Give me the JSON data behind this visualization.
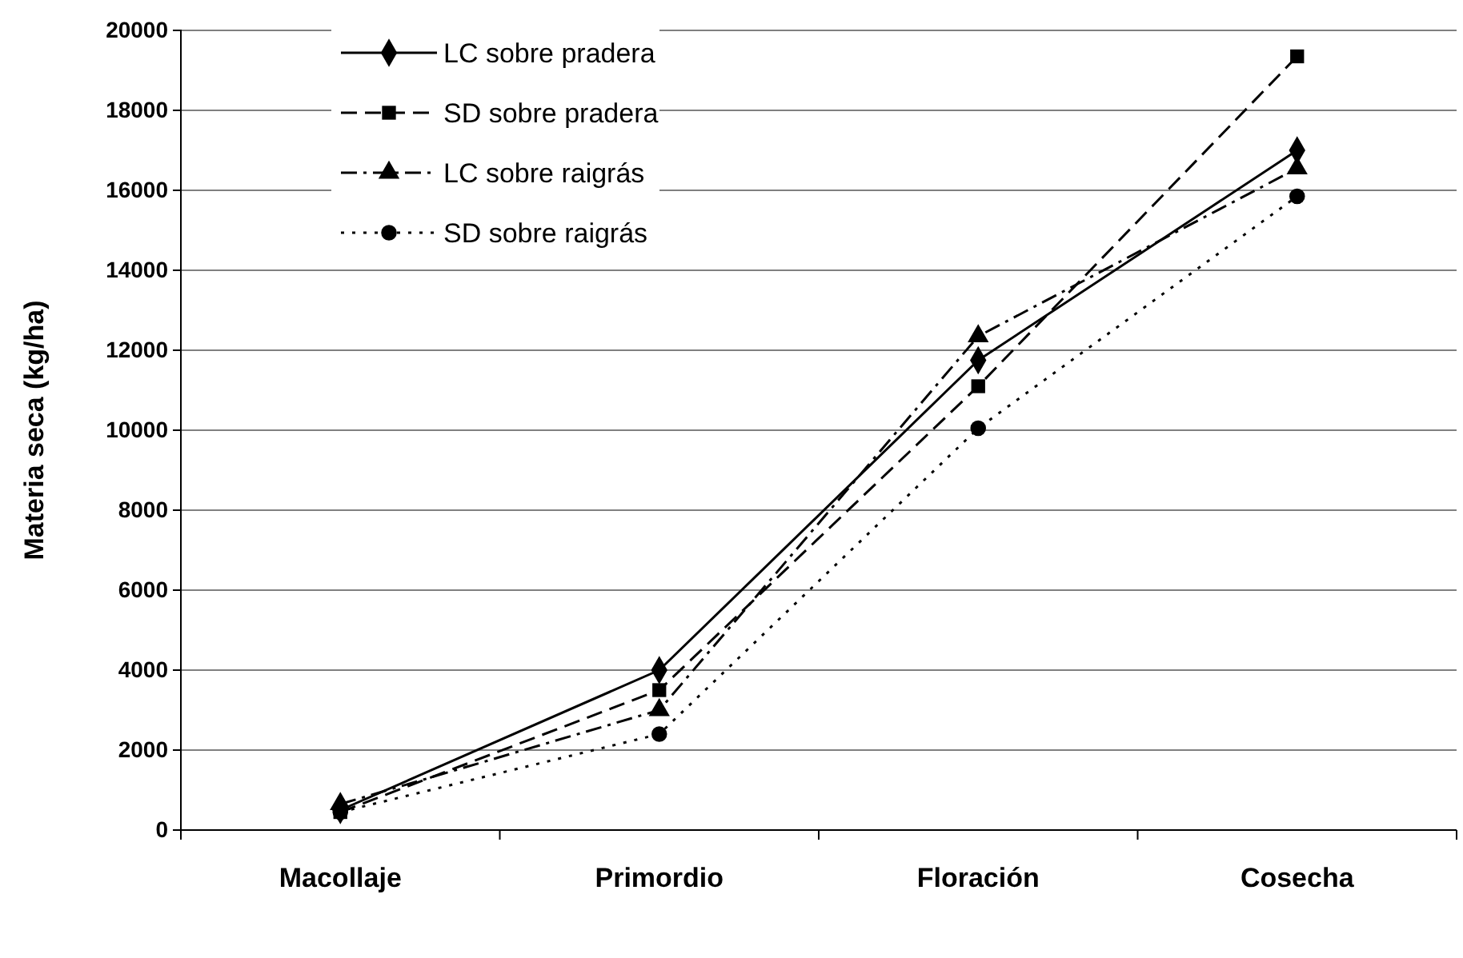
{
  "chart_data": {
    "type": "line",
    "ylabel": "Materia seca (kg/ha)",
    "categories": [
      "Macollaje",
      "Primordio",
      "Floración",
      "Cosecha"
    ],
    "ylim": [
      0,
      20000
    ],
    "yticks": [
      0,
      2000,
      4000,
      6000,
      8000,
      10000,
      12000,
      14000,
      16000,
      18000,
      20000
    ],
    "grid": "y",
    "legend": "top left",
    "series": [
      {
        "name": "LC sobre pradera",
        "color": "#000000",
        "marker": "diamond",
        "line_style": "solid",
        "values": [
          500,
          4000,
          11750,
          17000
        ]
      },
      {
        "name": "SD sobre pradera",
        "color": "#000000",
        "marker": "square",
        "line_style": "dashed",
        "values": [
          450,
          3500,
          11100,
          19350
        ]
      },
      {
        "name": "LC sobre raigrás",
        "color": "#000000",
        "marker": "triangle",
        "line_style": "dashdot",
        "values": [
          650,
          3000,
          12350,
          16550
        ]
      },
      {
        "name": "SD sobre raigrás",
        "color": "#000000",
        "marker": "circle",
        "line_style": "dotted",
        "values": [
          450,
          2400,
          10050,
          15850
        ]
      }
    ]
  }
}
